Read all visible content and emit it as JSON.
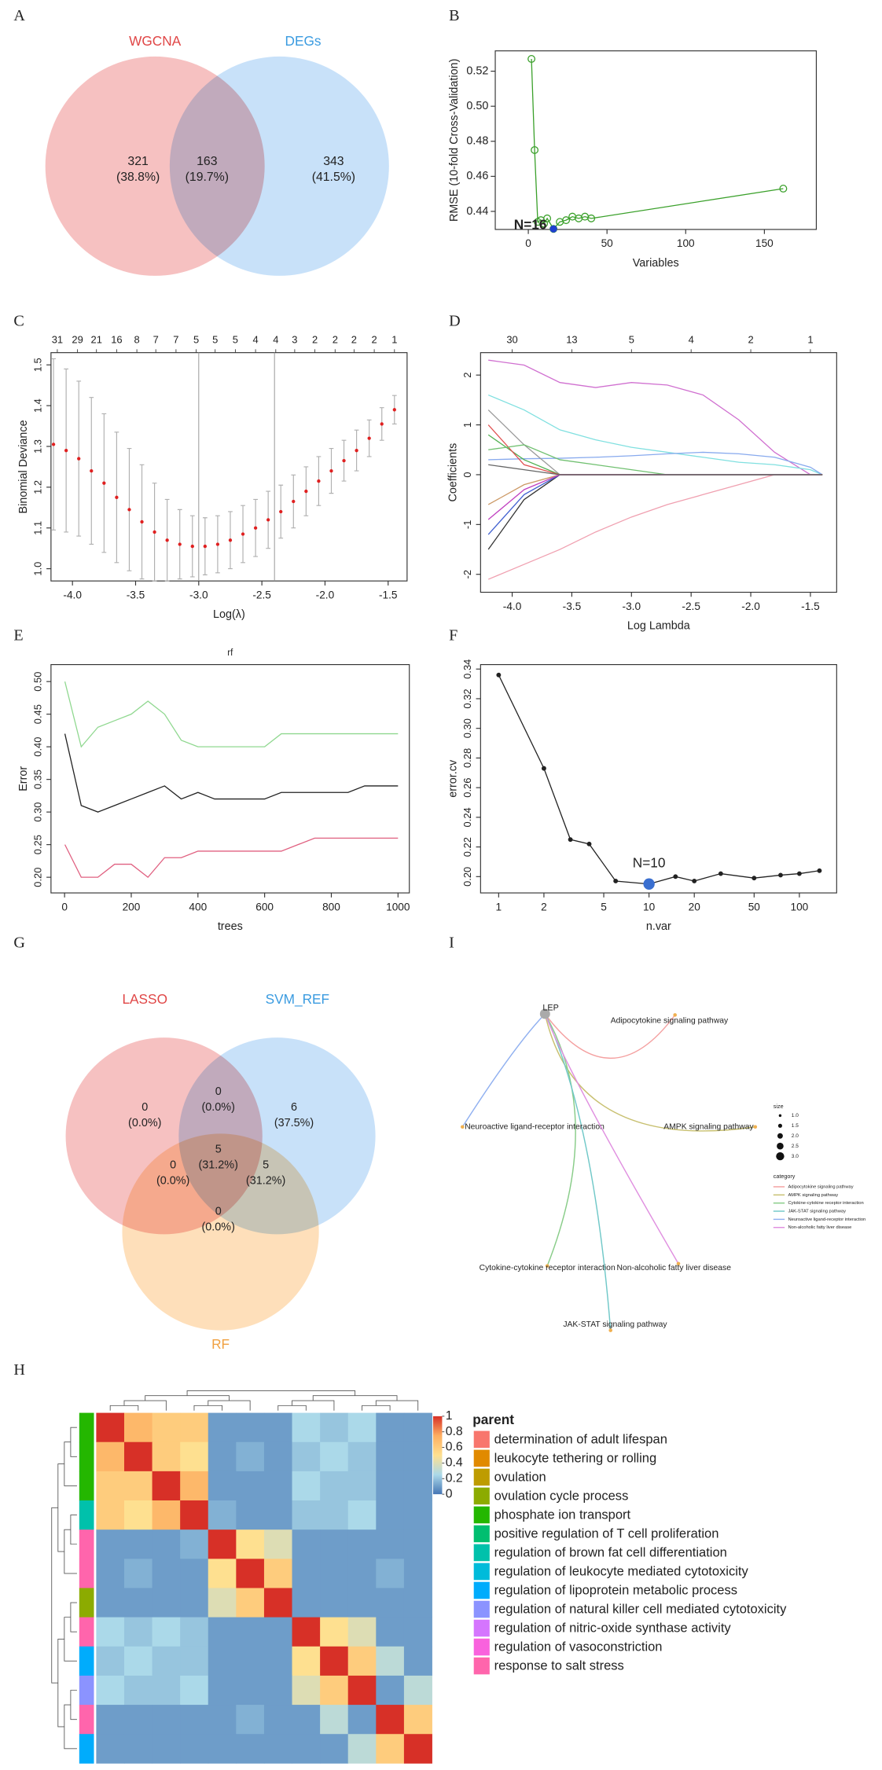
{
  "chart_data": [
    {
      "type": "venn",
      "panel": "A",
      "sets": [
        "WGCNA",
        "DEGs"
      ],
      "set_colors": [
        "#e04646",
        "#3a9be0"
      ],
      "fills": [
        "#f3a9a9",
        "#b3d5f6"
      ],
      "values": [
        321,
        163,
        343
      ],
      "percent_labels": [
        "(38.8%)",
        "(19.7%)",
        "(41.5%)"
      ]
    },
    {
      "type": "line",
      "panel": "B",
      "x_label": "Variables",
      "y_label": "RMSE (10-fold Cross-Validation)",
      "marker": "open",
      "series": [
        {
          "color": "#3aa02a",
          "x": [
            2,
            4,
            6,
            8,
            10,
            12,
            16,
            20,
            24,
            28,
            32,
            36,
            40,
            162
          ],
          "values": [
            0.527,
            0.475,
            0.434,
            0.435,
            0.433,
            0.436,
            0.43,
            0.434,
            0.435,
            0.437,
            0.436,
            0.437,
            0.436,
            0.453
          ]
        }
      ],
      "highlight": {
        "index": 6,
        "color": "#1f3fd0",
        "label": "N=16"
      },
      "xlim": [
        -21,
        183
      ],
      "xticks": [
        0,
        50,
        100,
        150
      ],
      "ylim": [
        0.4297,
        0.5316
      ],
      "yticks": [
        0.44,
        0.46,
        0.48,
        {
          "value": 0.5,
          "label": "0.50"
        },
        0.52
      ]
    },
    {
      "type": "errorbar",
      "panel": "C",
      "x_label": "Log(λ)",
      "y_label": "Binomial Deviance",
      "color": "#e02020",
      "bar_color": "#b0b0b0",
      "x": [
        -4.15,
        -4.05,
        -3.95,
        -3.85,
        -3.75,
        -3.65,
        -3.55,
        -3.45,
        -3.35,
        -3.25,
        -3.15,
        -3.05,
        -2.95,
        -2.85,
        -2.75,
        -2.65,
        -2.55,
        -2.45,
        -2.35,
        -2.25,
        -2.15,
        -2.05,
        -1.95,
        -1.85,
        -1.75,
        -1.65,
        -1.55,
        -1.45
      ],
      "values": [
        1.305,
        1.29,
        1.27,
        1.24,
        1.21,
        1.175,
        1.145,
        1.115,
        1.09,
        1.07,
        1.06,
        1.055,
        1.055,
        1.06,
        1.07,
        1.085,
        1.1,
        1.12,
        1.14,
        1.165,
        1.19,
        1.215,
        1.24,
        1.265,
        1.29,
        1.32,
        1.355,
        1.39
      ],
      "errors": [
        0.21,
        0.2,
        0.19,
        0.18,
        0.17,
        0.16,
        0.15,
        0.14,
        0.12,
        0.1,
        0.085,
        0.075,
        0.07,
        0.07,
        0.07,
        0.07,
        0.07,
        0.07,
        0.065,
        0.065,
        0.06,
        0.06,
        0.055,
        0.05,
        0.05,
        0.045,
        0.04,
        0.035
      ],
      "vlines": [
        -3.0,
        -2.4
      ],
      "top_ticks": [
        {
          "value": -4.12,
          "label": "31"
        },
        {
          "value": -3.96,
          "label": "29"
        },
        {
          "value": -3.81,
          "label": "21"
        },
        {
          "value": -3.65,
          "label": "16"
        },
        {
          "value": -3.49,
          "label": "8"
        },
        {
          "value": -3.34,
          "label": "7"
        },
        {
          "value": -3.18,
          "label": "7"
        },
        {
          "value": -3.02,
          "label": "5"
        },
        {
          "value": -2.87,
          "label": "5"
        },
        {
          "value": -2.71,
          "label": "5"
        },
        {
          "value": -2.55,
          "label": "4"
        },
        {
          "value": -2.39,
          "label": "4"
        },
        {
          "value": -2.24,
          "label": "3"
        },
        {
          "value": -2.08,
          "label": "2"
        },
        {
          "value": -1.92,
          "label": "2"
        },
        {
          "value": -1.77,
          "label": "2"
        },
        {
          "value": -1.61,
          "label": "2"
        },
        {
          "value": -1.45,
          "label": "1"
        }
      ],
      "xlim": [
        -4.17,
        -1.35
      ],
      "xticks": [
        {
          "value": -4,
          "label": "-4.0"
        },
        -3.5,
        {
          "value": -3,
          "label": "-3.0"
        },
        -2.5,
        {
          "value": -2,
          "label": "-2.0"
        },
        -1.5
      ],
      "ylim": [
        0.97,
        1.53
      ],
      "yticks": [
        {
          "value": 1,
          "label": "1.0"
        },
        1.1,
        1.2,
        1.3,
        1.4,
        1.5
      ]
    },
    {
      "type": "line",
      "panel": "D",
      "x_label": "Log Lambda",
      "y_label": "Coefficients",
      "x": [
        -4.2,
        -3.9,
        -3.6,
        -3.3,
        -3.0,
        -2.7,
        -2.4,
        -2.1,
        -1.8,
        -1.5,
        -1.4
      ],
      "series": [
        {
          "color": "#d070d0",
          "values": [
            2.3,
            2.2,
            1.85,
            1.75,
            1.85,
            1.8,
            1.6,
            1.1,
            0.45,
            0,
            0
          ]
        },
        {
          "color": "#80e0e0",
          "values": [
            1.6,
            1.3,
            0.9,
            0.7,
            0.55,
            0.45,
            0.35,
            0.25,
            0.2,
            0.1,
            0
          ]
        },
        {
          "color": "#88aaee",
          "values": [
            0.3,
            0.32,
            0.33,
            0.35,
            0.38,
            0.42,
            0.45,
            0.42,
            0.35,
            0.15,
            0
          ]
        },
        {
          "color": "#f0a0b0",
          "values": [
            -2.1,
            -1.8,
            -1.5,
            -1.15,
            -0.85,
            -0.6,
            -0.4,
            -0.2,
            0,
            0,
            0
          ]
        },
        {
          "color": "#333333",
          "values": [
            -1.5,
            -0.5,
            0,
            0,
            0,
            0,
            0,
            0,
            0,
            0,
            0
          ]
        },
        {
          "color": "#999999",
          "values": [
            1.3,
            0.6,
            0,
            0,
            0,
            0,
            0,
            0,
            0,
            0,
            0
          ]
        },
        {
          "color": "#50b050",
          "values": [
            0.8,
            0.3,
            0,
            0,
            0,
            0,
            0,
            0,
            0,
            0,
            0
          ]
        },
        {
          "color": "#4060d0",
          "values": [
            -1.2,
            -0.4,
            0,
            0,
            0,
            0,
            0,
            0,
            0,
            0,
            0
          ]
        },
        {
          "color": "#e05050",
          "values": [
            1.0,
            0.2,
            0,
            0,
            0,
            0,
            0,
            0,
            0,
            0,
            0
          ]
        },
        {
          "color": "#cc9966",
          "values": [
            -0.6,
            -0.2,
            0,
            0,
            0,
            0,
            0,
            0,
            0,
            0,
            0
          ]
        },
        {
          "color": "#70c070",
          "values": [
            0.5,
            0.6,
            0.3,
            0.2,
            0.1,
            0,
            0,
            0,
            0,
            0,
            0
          ]
        },
        {
          "color": "#c040c0",
          "values": [
            -0.9,
            -0.3,
            0,
            0,
            0,
            0,
            0,
            0,
            0,
            0,
            0
          ]
        },
        {
          "color": "#666666",
          "values": [
            0.2,
            0.1,
            0,
            0,
            0,
            0,
            0,
            0,
            0,
            0,
            0
          ]
        }
      ],
      "top_ticks": [
        {
          "value": -4,
          "label": "30"
        },
        {
          "value": -3.5,
          "label": "13"
        },
        {
          "value": -3,
          "label": "5"
        },
        {
          "value": -2.5,
          "label": "4"
        },
        {
          "value": -2,
          "label": "2"
        },
        {
          "value": -1.5,
          "label": "1"
        }
      ],
      "xlim": [
        -4.265,
        -1.28
      ],
      "xticks": [
        {
          "value": -4,
          "label": "-4.0"
        },
        -3.5,
        {
          "value": -3,
          "label": "-3.0"
        },
        -2.5,
        {
          "value": -2,
          "label": "-2.0"
        },
        -1.5
      ],
      "ylim": [
        -2.36,
        2.45
      ],
      "yticks": [
        -2,
        -1,
        0,
        1,
        2
      ]
    },
    {
      "type": "line",
      "panel": "E",
      "title": "rf",
      "x_label": "trees",
      "y_label": "Error",
      "x": [
        1,
        50,
        100,
        150,
        200,
        250,
        300,
        350,
        400,
        450,
        500,
        550,
        600,
        650,
        700,
        750,
        800,
        850,
        900,
        950,
        1000
      ],
      "series": [
        {
          "color": "#90d890",
          "values": [
            0.5,
            0.4,
            0.43,
            0.44,
            0.45,
            0.47,
            0.45,
            0.41,
            0.4,
            0.4,
            0.4,
            0.4,
            0.4,
            0.42,
            0.42,
            0.42,
            0.42,
            0.42,
            0.42,
            0.42,
            0.42
          ]
        },
        {
          "color": "#222222",
          "values": [
            0.42,
            0.31,
            0.3,
            0.31,
            0.32,
            0.33,
            0.34,
            0.32,
            0.33,
            0.32,
            0.32,
            0.32,
            0.32,
            0.33,
            0.33,
            0.33,
            0.33,
            0.33,
            0.34,
            0.34,
            0.34
          ]
        },
        {
          "color": "#e06080",
          "values": [
            0.25,
            0.2,
            0.2,
            0.22,
            0.22,
            0.2,
            0.23,
            0.23,
            0.24,
            0.24,
            0.24,
            0.24,
            0.24,
            0.24,
            0.25,
            0.26,
            0.26,
            0.26,
            0.26,
            0.26,
            0.26
          ]
        }
      ],
      "xlim": [
        -40.7,
        1034
      ],
      "xticks": [
        0,
        200,
        400,
        600,
        800,
        1000
      ],
      "ylim": [
        0.176,
        0.526
      ],
      "yticks": [
        {
          "value": 0.2,
          "label": "0.20"
        },
        0.25,
        {
          "value": 0.3,
          "label": "0.30"
        },
        0.35,
        {
          "value": 0.4,
          "label": "0.40"
        },
        0.45,
        {
          "value": 0.5,
          "label": "0.50"
        }
      ]
    },
    {
      "type": "line",
      "panel": "F",
      "x_label": "n.var",
      "y_label": "error.cv",
      "xscale": "log",
      "marker": "dot",
      "x": [
        1,
        2,
        3,
        4,
        6,
        10,
        15,
        20,
        30,
        50,
        75,
        100,
        136
      ],
      "series": [
        {
          "color": "#222222",
          "values": [
            0.336,
            0.273,
            0.225,
            0.222,
            0.197,
            0.195,
            0.2,
            0.197,
            0.202,
            0.199,
            0.201,
            0.202,
            0.204
          ]
        }
      ],
      "highlight": {
        "index": 5,
        "color": "#3a6fd0",
        "label": "N=10"
      },
      "xlim": [
        0.758,
        177
      ],
      "xticks": [
        1,
        2,
        5,
        10,
        20,
        50,
        100
      ],
      "ylim": [
        0.189,
        0.343
      ],
      "yticks": [
        {
          "value": 0.2,
          "label": "0.20"
        },
        0.22,
        0.24,
        0.26,
        0.28,
        {
          "value": 0.3,
          "label": "0.30"
        },
        0.32,
        0.34
      ]
    },
    {
      "type": "venn",
      "panel": "G",
      "sets": [
        "LASSO",
        "SVM_REF",
        "RF"
      ],
      "set_colors": [
        "#e04646",
        "#3a9be0",
        "#f0a040"
      ],
      "fills": [
        "#f3a9a9",
        "#b3d5f6",
        "#fdd3a0"
      ],
      "values": [
        0,
        0,
        6,
        5,
        0,
        5,
        0
      ],
      "percent_labels": [
        "(0.0%)",
        "(0.0%)",
        "(37.5%)",
        "(31.2%)",
        "(0.0%)",
        "(31.2%)",
        "(0.0%)"
      ]
    },
    {
      "type": "network",
      "panel": "I",
      "hub": "LEP",
      "categories": [
        {
          "name": "Adipocytokine signaling pathway",
          "color": "#f4a0a0"
        },
        {
          "name": "AMPK signaling pathway",
          "color": "#c8c070"
        },
        {
          "name": "Cytokine-cytokine receptor interaction",
          "color": "#88cc88"
        },
        {
          "name": "JAK-STAT signaling pathway",
          "color": "#70c8c8"
        },
        {
          "name": "Neuroactive ligand-receptor interaction",
          "color": "#90b0f0"
        },
        {
          "name": "Non-alcoholic fatty liver disease",
          "color": "#e090e0"
        }
      ],
      "size_title": "size",
      "size_ticks": [
        {
          "value": 1,
          "label": "1.0"
        },
        1.5,
        {
          "value": 2,
          "label": "2.0"
        },
        2.5,
        {
          "value": 3,
          "label": "3.0"
        }
      ],
      "category_title": "category"
    },
    {
      "type": "heatmap",
      "panel": "H",
      "clim": [
        0,
        1
      ],
      "colors": [
        "#4575b4",
        "#abd9e9",
        "#fee090",
        "#fdae61",
        "#d73027"
      ],
      "colorbar_ticks": [
        0,
        0.2,
        0.4,
        0.6,
        0.8,
        1
      ],
      "matrix": [
        [
          1,
          0.7,
          0.6,
          0.6,
          0.1,
          0.1,
          0.1,
          0.25,
          0.2,
          0.25,
          0.1,
          0.1
        ],
        [
          0.7,
          1,
          0.6,
          0.5,
          0.1,
          0.15,
          0.1,
          0.2,
          0.25,
          0.2,
          0.1,
          0.1
        ],
        [
          0.6,
          0.6,
          1,
          0.7,
          0.1,
          0.1,
          0.1,
          0.25,
          0.2,
          0.2,
          0.1,
          0.1
        ],
        [
          0.6,
          0.5,
          0.7,
          1,
          0.15,
          0.1,
          0.1,
          0.2,
          0.2,
          0.25,
          0.1,
          0.1
        ],
        [
          0.1,
          0.1,
          0.1,
          0.15,
          1,
          0.5,
          0.4,
          0.1,
          0.1,
          0.1,
          0.1,
          0.1
        ],
        [
          0.1,
          0.15,
          0.1,
          0.1,
          0.5,
          1,
          0.6,
          0.1,
          0.1,
          0.1,
          0.15,
          0.1
        ],
        [
          0.1,
          0.1,
          0.1,
          0.1,
          0.4,
          0.6,
          1,
          0.1,
          0.1,
          0.1,
          0.1,
          0.1
        ],
        [
          0.25,
          0.2,
          0.25,
          0.2,
          0.1,
          0.1,
          0.1,
          1,
          0.5,
          0.4,
          0.1,
          0.1
        ],
        [
          0.2,
          0.25,
          0.2,
          0.2,
          0.1,
          0.1,
          0.1,
          0.5,
          1,
          0.6,
          0.3,
          0.1
        ],
        [
          0.25,
          0.2,
          0.2,
          0.25,
          0.1,
          0.1,
          0.1,
          0.4,
          0.6,
          1,
          0.1,
          0.3
        ],
        [
          0.1,
          0.1,
          0.1,
          0.1,
          0.1,
          0.15,
          0.1,
          0.1,
          0.3,
          0.1,
          1,
          0.6
        ],
        [
          0.1,
          0.1,
          0.1,
          0.1,
          0.1,
          0.1,
          0.1,
          0.1,
          0.1,
          0.3,
          0.6,
          1
        ]
      ],
      "row_groups": [
        4,
        4,
        4,
        6,
        12,
        12,
        3,
        12,
        8,
        9,
        12,
        8
      ],
      "legend_title": "parent",
      "groups": [
        {
          "name": "determination of adult lifespan",
          "color": "#F8766D"
        },
        {
          "name": "leukocyte tethering or rolling",
          "color": "#E18A00"
        },
        {
          "name": "ovulation",
          "color": "#BE9C00"
        },
        {
          "name": "ovulation cycle process",
          "color": "#8CAB00"
        },
        {
          "name": "phosphate ion transport",
          "color": "#24B700"
        },
        {
          "name": "positive regulation of T cell proliferation",
          "color": "#00BE70"
        },
        {
          "name": "regulation of brown fat cell differentiation",
          "color": "#00C1AB"
        },
        {
          "name": "regulation of leukocyte mediated cytotoxicity",
          "color": "#00BBDA"
        },
        {
          "name": "regulation of lipoprotein metabolic process",
          "color": "#00ACFC"
        },
        {
          "name": "regulation of natural killer cell mediated cytotoxicity",
          "color": "#8B93FF"
        },
        {
          "name": "regulation of nitric-oxide synthase activity",
          "color": "#D575FE"
        },
        {
          "name": "regulation of vasoconstriction",
          "color": "#F962DD"
        },
        {
          "name": "response to salt stress",
          "color": "#FF65AC"
        }
      ]
    }
  ]
}
